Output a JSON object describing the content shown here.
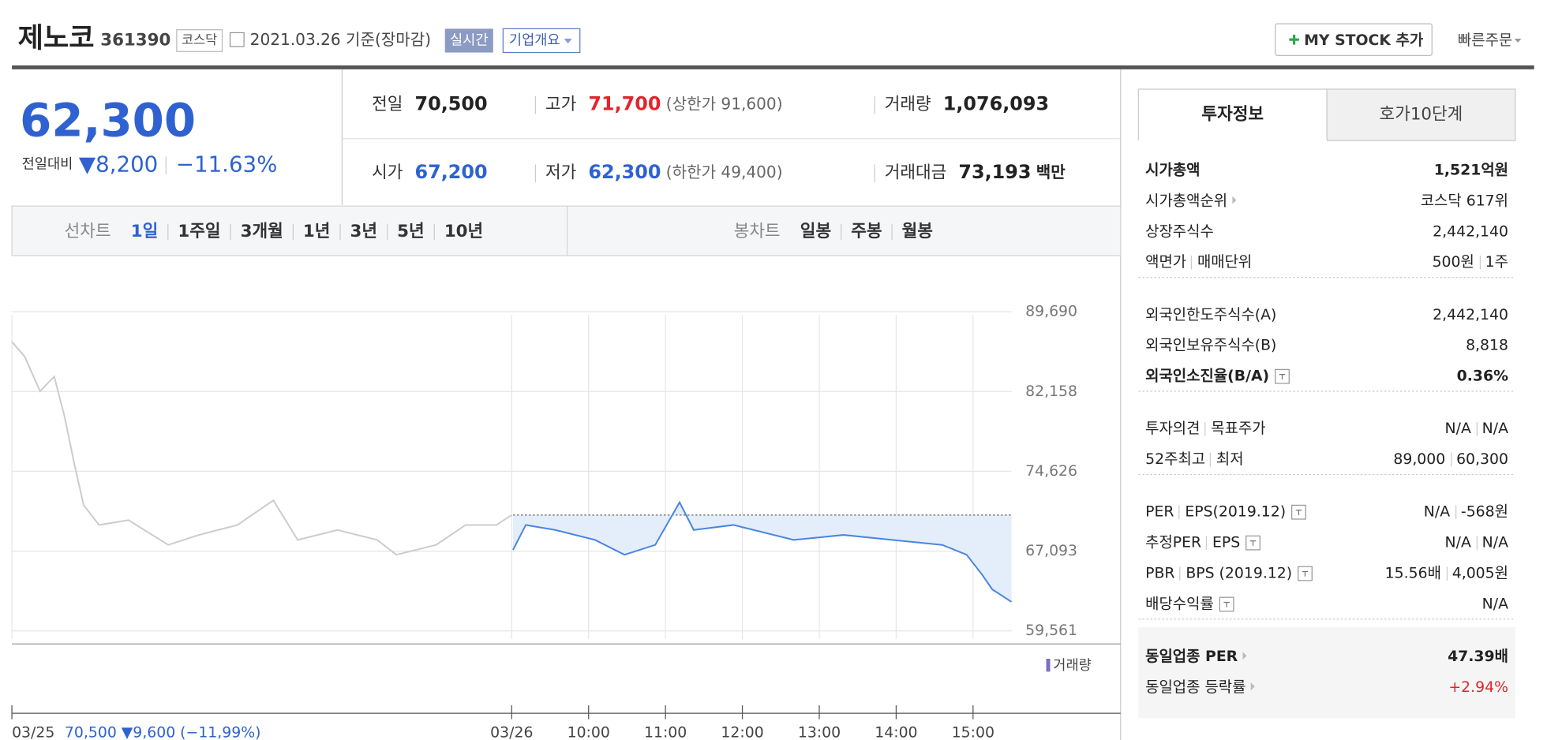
{
  "header": {
    "name": "제노코",
    "code": "361390",
    "market": "코스닥",
    "date": "2021.03.26 기준(장마감)",
    "realtime": "실시간",
    "company": "기업개요",
    "mystock": "MY STOCK 추가",
    "quick": "빠른주문"
  },
  "price": {
    "current": "62,300",
    "change_label": "전일대비",
    "change": "▼8,200",
    "rate": "−11.63%"
  },
  "quote": {
    "rows": [
      [
        {
          "label": "전일",
          "value": "70,500"
        },
        {
          "label": "고가",
          "value": "71,700",
          "color": "red",
          "note": "(상한가 91,600)"
        },
        {
          "label": "거래량",
          "value": "1,076,093"
        }
      ],
      [
        {
          "label": "시가",
          "value": "67,200",
          "color": "blue"
        },
        {
          "label": "저가",
          "value": "62,300",
          "color": "blue",
          "note": "(하한가 49,400)"
        },
        {
          "label": "거래대금",
          "value": "73,193",
          "note": "백만"
        }
      ]
    ]
  },
  "tabs": {
    "line_label": "선차트",
    "line": [
      "1일",
      "1주일",
      "3개월",
      "1년",
      "3년",
      "5년",
      "10년"
    ],
    "active": 0,
    "candle_label": "봉차트",
    "candle": [
      "일봉",
      "주봉",
      "월봉"
    ]
  },
  "chart_data": {
    "type": "line",
    "xlim": [
      0,
      780
    ],
    "ylim": [
      58800,
      92000
    ],
    "yticks": [
      {
        "value": 89690,
        "label": "89,690"
      },
      {
        "value": 82158,
        "label": "82,158"
      },
      {
        "value": 74626,
        "label": "74,626"
      },
      {
        "value": 67093,
        "label": "67,093"
      },
      {
        "value": 59561,
        "label": "59,561"
      }
    ],
    "xticks": [
      {
        "value": 0,
        "label": "03/25"
      },
      {
        "value": 390,
        "label": "03/26"
      },
      {
        "value": 450,
        "label": "10:00"
      },
      {
        "value": 510,
        "label": "11:00"
      },
      {
        "value": 570,
        "label": "12:00"
      },
      {
        "value": 630,
        "label": "13:00"
      },
      {
        "value": 690,
        "label": "14:00"
      },
      {
        "value": 750,
        "label": "15:00"
      }
    ],
    "grid": true,
    "legend": "거래량",
    "prev_summary": "70,500 ▼9,600 (−11,99%)",
    "series": [
      {
        "color": "#cccccc",
        "x": [
          0,
          10,
          22,
          33,
          41,
          49,
          56,
          68,
          91,
          122,
          146,
          176,
          204,
          223,
          254,
          285,
          300,
          331,
          354,
          378,
          390
        ],
        "values": [
          86860,
          85450,
          82180,
          83580,
          79840,
          75170,
          71430,
          69560,
          70020,
          67680,
          68620,
          69560,
          71890,
          68150,
          69090,
          68150,
          66750,
          67680,
          69560,
          69560,
          70500
        ]
      },
      {
        "color": "#4a86e0",
        "area_color": "#e4edfa",
        "x": [
          391,
          401,
          424,
          455,
          478,
          502,
          521,
          532,
          563,
          610,
          649,
          687,
          726,
          745,
          757,
          765,
          780
        ],
        "values": [
          67200,
          69560,
          69090,
          68150,
          66750,
          67680,
          71700,
          69090,
          69560,
          68150,
          68620,
          68150,
          67680,
          66750,
          64880,
          63480,
          62300
        ]
      }
    ]
  },
  "invest": {
    "tabs": [
      "투자정보",
      "호가10단계"
    ],
    "sections": [
      [
        {
          "label": [
            "시가총액"
          ],
          "value": [
            "1,521억원"
          ],
          "bold": true
        },
        {
          "label": [
            "시가총액순위"
          ],
          "icon": "arrow",
          "value": [
            "코스닥 617위"
          ]
        },
        {
          "label": [
            "상장주식수"
          ],
          "value": [
            "2,442,140"
          ]
        },
        {
          "label": [
            "액면가",
            "매매단위"
          ],
          "value": [
            "500원",
            "1주"
          ]
        }
      ],
      [
        {
          "label": [
            "외국인한도주식수(A)"
          ],
          "value": [
            "2,442,140"
          ]
        },
        {
          "label": [
            "외국인보유주식수(B)"
          ],
          "value": [
            "8,818"
          ]
        },
        {
          "label": [
            "외국인소진율(B/A)"
          ],
          "icon": "help",
          "value": [
            "0.36%"
          ],
          "bold": true
        }
      ],
      [
        {
          "label": [
            "투자의견",
            "목표주가"
          ],
          "value": [
            "N/A",
            "N/A"
          ]
        },
        {
          "label": [
            "52주최고",
            "최저"
          ],
          "value": [
            "89,000",
            "60,300"
          ]
        }
      ],
      [
        {
          "label": [
            "PER",
            "EPS(2019.12)"
          ],
          "icon": "help",
          "value": [
            "N/A",
            "-568원"
          ]
        },
        {
          "label": [
            "추정PER",
            "EPS"
          ],
          "icon": "help",
          "value": [
            "N/A",
            "N/A"
          ]
        },
        {
          "label": [
            "PBR",
            "BPS (2019.12)"
          ],
          "icon": "help",
          "value": [
            "15.56배",
            "4,005원"
          ]
        },
        {
          "label": [
            "배당수익률"
          ],
          "icon": "help",
          "value": [
            "N/A"
          ]
        }
      ],
      [
        {
          "label": [
            "동일업종 PER"
          ],
          "icon": "arrow",
          "value": [
            "47.39배"
          ],
          "bold": true
        },
        {
          "label": [
            "동일업종 등락률"
          ],
          "icon": "arrow",
          "value": [
            "+2.94%"
          ],
          "color": "red"
        }
      ]
    ]
  }
}
